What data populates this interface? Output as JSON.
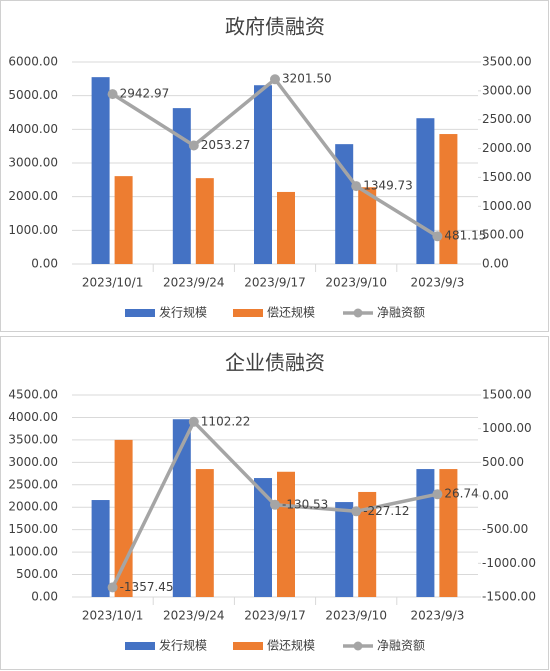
{
  "chart_data": [
    {
      "type": "bar",
      "title": "政府债融资",
      "categories": [
        "2023/10/1",
        "2023/9/24",
        "2023/9/17",
        "2023/9/10",
        "2023/9/3"
      ],
      "series": [
        {
          "name": "发行规模",
          "color": "#4472c4",
          "values": [
            5550,
            4630,
            5310,
            3560,
            4330
          ]
        },
        {
          "name": "偿还规模",
          "color": "#ed7d31",
          "values": [
            2610,
            2550,
            2140,
            2280,
            3860
          ]
        },
        {
          "name": "净融资额",
          "color": "#a5a5a5",
          "type": "line",
          "axis": "y2",
          "values": [
            2942.97,
            2053.27,
            3201.5,
            1349.73,
            481.15
          ],
          "value_labels": [
            "2942.97",
            "2053.27",
            "3201.50",
            "1349.73",
            "481.15"
          ]
        }
      ],
      "ylim": [
        0,
        6000
      ],
      "yticks": [
        {
          "value": 0,
          "label": "0.00"
        },
        {
          "value": 1000,
          "label": "1000.00"
        },
        {
          "value": 2000,
          "label": "2000.00"
        },
        {
          "value": 3000,
          "label": "3000.00"
        },
        {
          "value": 4000,
          "label": "4000.00"
        },
        {
          "value": 5000,
          "label": "5000.00"
        },
        {
          "value": 6000,
          "label": "6000.00"
        }
      ],
      "y2lim": [
        0,
        3500
      ],
      "y2ticks": [
        {
          "value": 0,
          "label": "0.00"
        },
        {
          "value": 500,
          "label": "500.00"
        },
        {
          "value": 1000,
          "label": "1000.00"
        },
        {
          "value": 1500,
          "label": "1500.00"
        },
        {
          "value": 2000,
          "label": "2000.00"
        },
        {
          "value": 2500,
          "label": "2500.00"
        },
        {
          "value": 3000,
          "label": "3000.00"
        },
        {
          "value": 3500,
          "label": "3500.00"
        }
      ],
      "legend": "bottom"
    },
    {
      "type": "bar",
      "title": "企业债融资",
      "categories": [
        "2023/10/1",
        "2023/9/24",
        "2023/9/17",
        "2023/9/10",
        "2023/9/3"
      ],
      "series": [
        {
          "name": "发行规模",
          "color": "#4472c4",
          "values": [
            2160,
            3960,
            2650,
            2115,
            2850
          ]
        },
        {
          "name": "偿还规模",
          "color": "#ed7d31",
          "values": [
            3500,
            2850,
            2790,
            2340,
            2850
          ]
        },
        {
          "name": "净融资额",
          "color": "#a5a5a5",
          "type": "line",
          "axis": "y2",
          "values": [
            -1357.45,
            1102.22,
            -130.53,
            -227.12,
            26.74
          ],
          "value_labels": [
            "-1357.45",
            "1102.22",
            "-130.53",
            "-227.12",
            "26.74"
          ]
        }
      ],
      "ylim": [
        0,
        4500
      ],
      "yticks": [
        {
          "value": 0,
          "label": "0.00"
        },
        {
          "value": 500,
          "label": "500.00"
        },
        {
          "value": 1000,
          "label": "1000.00"
        },
        {
          "value": 1500,
          "label": "1500.00"
        },
        {
          "value": 2000,
          "label": "2000.00"
        },
        {
          "value": 2500,
          "label": "2500.00"
        },
        {
          "value": 3000,
          "label": "3000.00"
        },
        {
          "value": 3500,
          "label": "3500.00"
        },
        {
          "value": 4000,
          "label": "4000.00"
        },
        {
          "value": 4500,
          "label": "4500.00"
        }
      ],
      "y2lim": [
        -1500,
        1500
      ],
      "y2ticks": [
        {
          "value": -1500,
          "label": "-1500.00"
        },
        {
          "value": -1000,
          "label": "-1000.00"
        },
        {
          "value": -500,
          "label": "-500.00"
        },
        {
          "value": 0,
          "label": "0.00"
        },
        {
          "value": 500,
          "label": "500.00"
        },
        {
          "value": 1000,
          "label": "1000.00"
        },
        {
          "value": 1500,
          "label": "1500.00"
        }
      ],
      "legend": "bottom"
    }
  ]
}
